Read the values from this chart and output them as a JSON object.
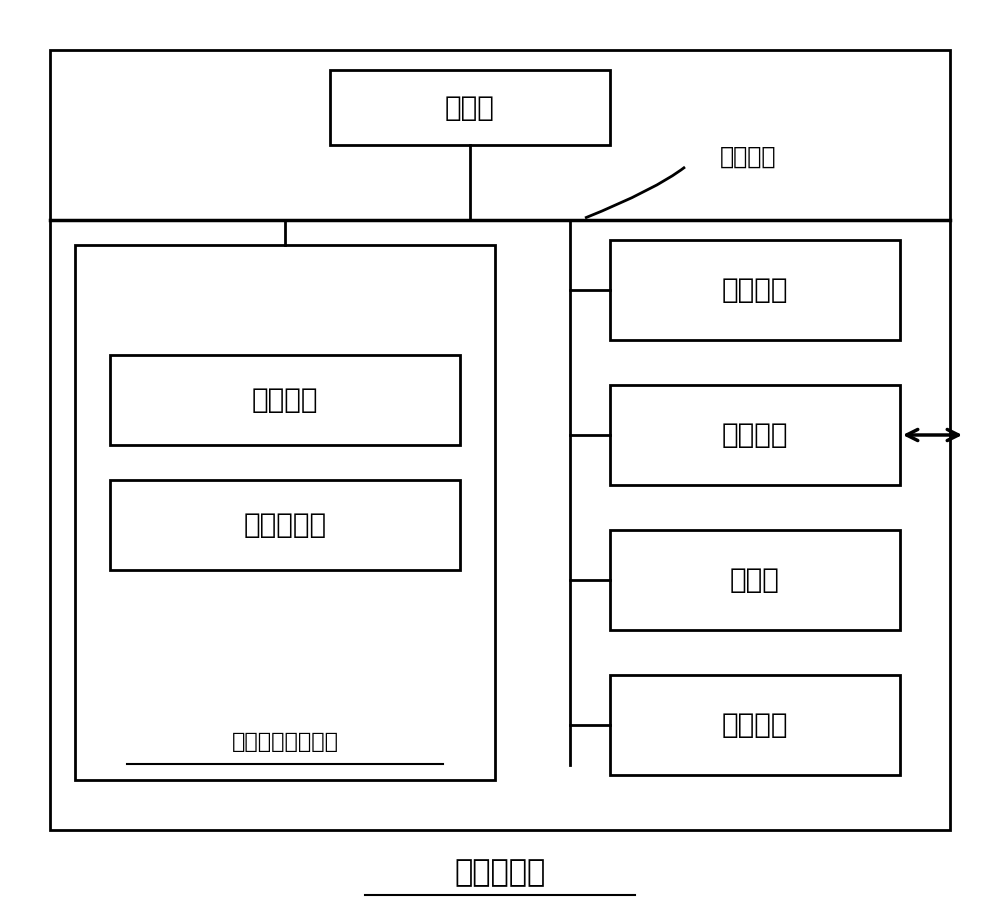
{
  "fig_width": 10.0,
  "fig_height": 9.15,
  "bg_color": "#ffffff",
  "line_color": "#000000",
  "text_color": "#000000",
  "title_text": "计算机设备",
  "title_fontsize": 22,
  "label_xitong_zongxian": "系统总线",
  "label_chuliqi": "处理器",
  "label_caozuo_xitong": "操作系统",
  "label_jisuanji_chengxu": "计算机程序",
  "label_fei_yishi": "非易失性存储介质",
  "label_neicunchu": "内存储器",
  "label_wangluo_jiekou": "网络接口",
  "label_xianshiping": "显示屏",
  "label_shuru_zhuangzhi": "输入装置"
}
